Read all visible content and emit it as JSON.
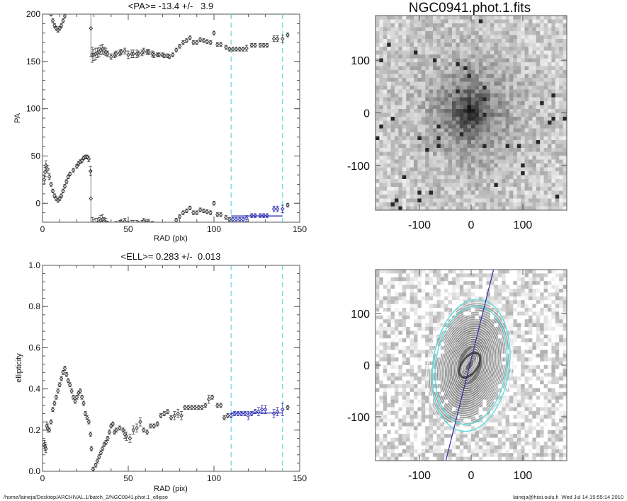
{
  "colors": {
    "points": "#333333",
    "fit": "#2b2bb0",
    "range": "#66dddd",
    "axis": "#555555"
  },
  "chart_data": [
    {
      "type": "scatter",
      "title": "<PA>= -13.4 +/-   3.9",
      "xlabel": "RAD (pix)",
      "ylabel": "PA",
      "xlim": [
        0,
        150
      ],
      "ylim": [
        -20,
        200
      ],
      "xticks": [
        0,
        50,
        100,
        150
      ],
      "yticks": [
        0,
        50,
        100,
        150,
        200
      ],
      "wrap_offsets": [
        0,
        180,
        -180
      ],
      "fit_range": [
        110,
        140
      ],
      "fit_value": -13.4,
      "fit_error": 3.9,
      "default_error": 2,
      "points": [
        [
          1,
          25,
          4
        ],
        [
          1.5,
          33,
          5
        ],
        [
          2,
          40,
          5
        ],
        [
          3,
          36,
          4
        ],
        [
          4,
          28,
          3
        ],
        [
          5,
          20,
          2
        ],
        [
          6,
          13,
          2
        ],
        [
          7,
          8,
          2
        ],
        [
          8,
          5,
          2
        ],
        [
          9,
          3,
          2
        ],
        [
          10,
          5,
          2
        ],
        [
          11,
          8,
          2
        ],
        [
          12,
          13,
          2
        ],
        [
          13,
          18,
          2
        ],
        [
          14,
          23,
          2
        ],
        [
          15,
          28,
          2
        ],
        [
          16,
          31,
          2
        ],
        [
          18,
          35,
          2
        ],
        [
          20,
          39,
          2
        ],
        [
          21,
          42,
          2
        ],
        [
          22,
          44,
          2
        ],
        [
          23,
          45,
          2
        ],
        [
          24,
          48,
          2
        ],
        [
          25,
          49,
          2
        ],
        [
          26,
          49,
          2
        ],
        [
          27,
          47,
          3
        ],
        [
          28,
          34,
          5
        ],
        [
          28.2,
          5,
          30
        ],
        [
          29,
          157,
          8
        ],
        [
          30,
          157,
          6
        ],
        [
          31,
          158,
          6
        ],
        [
          32,
          159,
          5
        ],
        [
          33,
          160,
          5
        ],
        [
          34,
          162,
          5
        ],
        [
          35,
          163,
          5
        ],
        [
          36,
          161,
          4
        ],
        [
          37,
          160,
          4
        ],
        [
          38,
          158,
          3
        ],
        [
          40,
          155,
          3
        ],
        [
          42,
          157,
          3
        ],
        [
          43,
          158,
          3
        ],
        [
          45,
          159,
          3
        ],
        [
          46,
          160,
          3
        ],
        [
          48,
          161,
          3
        ],
        [
          50,
          157,
          4
        ],
        [
          52,
          158,
          4
        ],
        [
          53,
          158,
          4
        ],
        [
          55,
          158,
          4
        ],
        [
          56,
          158,
          3
        ],
        [
          58,
          159,
          3
        ],
        [
          59,
          161,
          3
        ],
        [
          61,
          160,
          3
        ],
        [
          62,
          160,
          3
        ],
        [
          64,
          158,
          3
        ],
        [
          65,
          157,
          3
        ],
        [
          67,
          157,
          2
        ],
        [
          68,
          157,
          2
        ],
        [
          70,
          157,
          2
        ],
        [
          71,
          156,
          2
        ],
        [
          73,
          156,
          2
        ],
        [
          74,
          155,
          2
        ],
        [
          76,
          157,
          2
        ],
        [
          78,
          162,
          2
        ],
        [
          80,
          166,
          2
        ],
        [
          82,
          170,
          2
        ],
        [
          84,
          172,
          2
        ],
        [
          86,
          175,
          2
        ],
        [
          88,
          170,
          2
        ],
        [
          90,
          170,
          2
        ],
        [
          92,
          173,
          2
        ],
        [
          94,
          172,
          2
        ],
        [
          96,
          171,
          2
        ],
        [
          98,
          170,
          2
        ],
        [
          100,
          180,
          2
        ],
        [
          102,
          168,
          2
        ],
        [
          104,
          168,
          2
        ],
        [
          107,
          165,
          2
        ],
        [
          109,
          163,
          2
        ],
        [
          111,
          163,
          2
        ],
        [
          113,
          163,
          2
        ],
        [
          115,
          163,
          2
        ],
        [
          117,
          163,
          2
        ],
        [
          119,
          164,
          3
        ],
        [
          122,
          167,
          2
        ],
        [
          124,
          167,
          2
        ],
        [
          127,
          167,
          2
        ],
        [
          129,
          167,
          2
        ],
        [
          131,
          167,
          2
        ],
        [
          135,
          174,
          3
        ],
        [
          137,
          174,
          3
        ],
        [
          140,
          174,
          4
        ],
        [
          143,
          178,
          2
        ]
      ]
    },
    {
      "type": "scatter",
      "title": "<ELL>= 0.283 +/-  0.013",
      "xlabel": "RAD (pix)",
      "ylabel": "ellipticity",
      "xlim": [
        0,
        150
      ],
      "ylim": [
        0,
        1
      ],
      "xticks": [
        0,
        50,
        100,
        150
      ],
      "yticks": [
        0.0,
        0.2,
        0.4,
        0.6,
        0.8,
        1.0
      ],
      "ytick_labels": [
        "0.0",
        "0.2",
        "0.4",
        "0.6",
        "0.8",
        "1.0"
      ],
      "fit_range": [
        110,
        140
      ],
      "fit_value": 0.283,
      "fit_error": 0.013,
      "default_error": 0.01,
      "points": [
        [
          1,
          0.13,
          0.02
        ],
        [
          1.5,
          0.12,
          0.02
        ],
        [
          2,
          0.11,
          0.02
        ],
        [
          2.5,
          0.22,
          0.02
        ],
        [
          3,
          0.21,
          0.02
        ],
        [
          4,
          0.2,
          0.01
        ],
        [
          5,
          0.24,
          0.01
        ],
        [
          6,
          0.3,
          0.01
        ],
        [
          7,
          0.33,
          0.01
        ],
        [
          8,
          0.36,
          0.01
        ],
        [
          9,
          0.39,
          0.01
        ],
        [
          10,
          0.42,
          0.01
        ],
        [
          11,
          0.45,
          0.01
        ],
        [
          12,
          0.48,
          0.01
        ],
        [
          13,
          0.5,
          0.01
        ],
        [
          14,
          0.47,
          0.01
        ],
        [
          15,
          0.44,
          0.01
        ],
        [
          16,
          0.42,
          0.01
        ],
        [
          17,
          0.39,
          0.01
        ],
        [
          18,
          0.36,
          0.01
        ],
        [
          19,
          0.34,
          0.01
        ],
        [
          20,
          0.36,
          0.01
        ],
        [
          21,
          0.38,
          0.01
        ],
        [
          22,
          0.39,
          0.01
        ],
        [
          23,
          0.36,
          0.01
        ],
        [
          24,
          0.33,
          0.01
        ],
        [
          25,
          0.28,
          0.01
        ],
        [
          26,
          0.26,
          0.01
        ],
        [
          27,
          0.24,
          0.01
        ],
        [
          28,
          0.18,
          0.01
        ],
        [
          28.5,
          0.11,
          0.01
        ],
        [
          29.5,
          0.01,
          0.01
        ],
        [
          31,
          0.03,
          0.01
        ],
        [
          32,
          0.05,
          0.01
        ],
        [
          33,
          0.07,
          0.01
        ],
        [
          34,
          0.09,
          0.01
        ],
        [
          35,
          0.11,
          0.01
        ],
        [
          36,
          0.13,
          0.01
        ],
        [
          37,
          0.14,
          0.01
        ],
        [
          38,
          0.16,
          0.01
        ],
        [
          39,
          0.19,
          0.01
        ],
        [
          40,
          0.22,
          0.01
        ],
        [
          41,
          0.23,
          0.01
        ],
        [
          42,
          0.19,
          0.01
        ],
        [
          43,
          0.2,
          0.01
        ],
        [
          45,
          0.21,
          0.01
        ],
        [
          47,
          0.2,
          0.01
        ],
        [
          48,
          0.18,
          0.02
        ],
        [
          49,
          0.17,
          0.02
        ],
        [
          51,
          0.16,
          0.02
        ],
        [
          53,
          0.2,
          0.02
        ],
        [
          55,
          0.21,
          0.02
        ],
        [
          57,
          0.24,
          0.02
        ],
        [
          59,
          0.2,
          0.01
        ],
        [
          61,
          0.19,
          0.01
        ],
        [
          63,
          0.22,
          0.01
        ],
        [
          65,
          0.22,
          0.01
        ],
        [
          67,
          0.23,
          0.01
        ],
        [
          69,
          0.27,
          0.01
        ],
        [
          71,
          0.28,
          0.01
        ],
        [
          73,
          0.29,
          0.01
        ],
        [
          75,
          0.26,
          0.01
        ],
        [
          77,
          0.27,
          0.02
        ],
        [
          79,
          0.28,
          0.02
        ],
        [
          81,
          0.27,
          0.02
        ],
        [
          83,
          0.31,
          0.01
        ],
        [
          85,
          0.31,
          0.01
        ],
        [
          87,
          0.31,
          0.01
        ],
        [
          89,
          0.31,
          0.01
        ],
        [
          91,
          0.31,
          0.01
        ],
        [
          93,
          0.31,
          0.01
        ],
        [
          95,
          0.32,
          0.01
        ],
        [
          97,
          0.35,
          0.02
        ],
        [
          99,
          0.36,
          0.01
        ],
        [
          102,
          0.32,
          0.01
        ],
        [
          104,
          0.32,
          0.01
        ],
        [
          106,
          0.26,
          0.01
        ],
        [
          108,
          0.27,
          0.01
        ],
        [
          110,
          0.27,
          0.01
        ],
        [
          112,
          0.28,
          0.01
        ],
        [
          114,
          0.28,
          0.01
        ],
        [
          116,
          0.28,
          0.01
        ],
        [
          118,
          0.28,
          0.01
        ],
        [
          120,
          0.27,
          0.02
        ],
        [
          122,
          0.28,
          0.01
        ],
        [
          124,
          0.29,
          0.01
        ],
        [
          126,
          0.29,
          0.02
        ],
        [
          128,
          0.3,
          0.02
        ],
        [
          130,
          0.3,
          0.02
        ],
        [
          135,
          0.28,
          0.02
        ],
        [
          137,
          0.29,
          0.02
        ],
        [
          140,
          0.3,
          0.03
        ],
        [
          143,
          0.31,
          0.01
        ]
      ]
    },
    {
      "type": "heatmap",
      "title": "NGC0941.phot.1.fits",
      "xlim": [
        -185,
        185
      ],
      "ylim": [
        -185,
        185
      ],
      "xticks": [
        -100,
        0,
        100
      ],
      "yticks": [
        -100,
        0,
        100
      ]
    },
    {
      "type": "heatmap",
      "title": "",
      "xlim": [
        -185,
        185
      ],
      "ylim": [
        -185,
        185
      ],
      "xticks": [
        -100,
        0,
        100
      ],
      "yticks": [
        -100,
        0,
        100
      ],
      "fit_pa_deg": -13.4,
      "fit_ellipticity": 0.283
    }
  ],
  "footer": {
    "path": "/home/laineja/Desktop/ARCHIVAL.1/batch_2/NGC0941.phot.1_ellipse",
    "stamp": "laineja@hiisi.oulu.fi  Wed Jul 14 15:55:14 2010"
  }
}
